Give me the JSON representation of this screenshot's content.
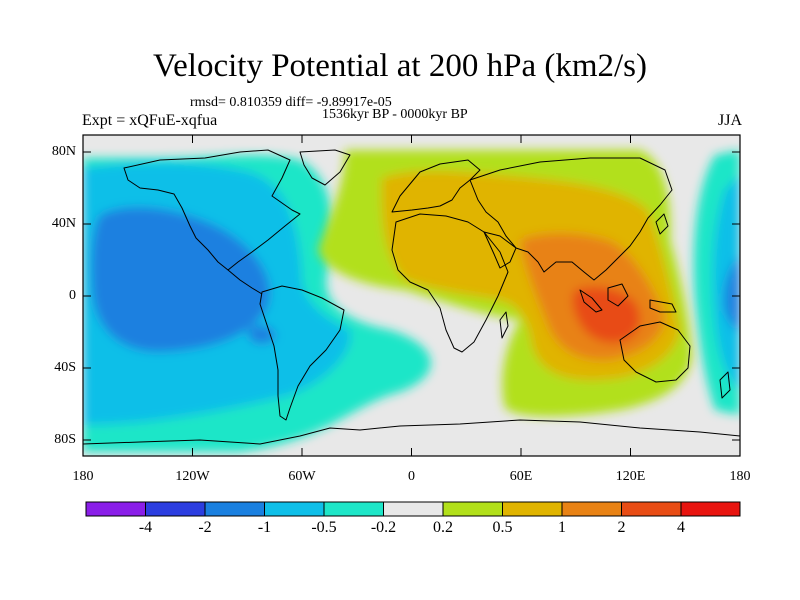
{
  "title": "Velocity Potential at 200 hPa (km2/s)",
  "stats": "rmsd= 0.810359 diff= -9.89917e-05",
  "period": "1536kyr BP - 0000kyr BP",
  "experiment": "Expt = xQFuE-xqfua",
  "season": "JJA",
  "map": {
    "projection": "cylindrical equidistant",
    "lon_range": [
      -180,
      180
    ],
    "lat_range": [
      -90,
      90
    ],
    "lat_ticks": [
      {
        "label": "80N",
        "lat": 80
      },
      {
        "label": "40N",
        "lat": 40
      },
      {
        "label": "0",
        "lat": 0
      },
      {
        "label": "40S",
        "lat": -40
      },
      {
        "label": "80S",
        "lat": -80
      }
    ],
    "lon_ticks": [
      {
        "label": "180",
        "lon": -180
      },
      {
        "label": "120W",
        "lon": -120
      },
      {
        "label": "60W",
        "lon": -60
      },
      {
        "label": "0",
        "lon": 0
      },
      {
        "label": "60E",
        "lon": 60
      },
      {
        "label": "120E",
        "lon": 120
      },
      {
        "label": "180",
        "lon": 180
      }
    ],
    "field_summary": "Negative velocity potential (blue) over the Pacific and Americas; positive (orange/red) over Africa, Asia, Indian Ocean and Maritime Continent, maximum near 110E, 10S"
  },
  "colorbar": {
    "labels": [
      "-4",
      "-2",
      "-1",
      "-0.5",
      "-0.2",
      "0.2",
      "0.5",
      "1",
      "2",
      "4"
    ],
    "colors": [
      "#8a1ee8",
      "#2c3ee0",
      "#1a80e0",
      "#0fbfe8",
      "#1ee6c8",
      "#e8e8e8",
      "#b2e01a",
      "#e0b400",
      "#e88214",
      "#e84c14",
      "#e8140f"
    ]
  }
}
